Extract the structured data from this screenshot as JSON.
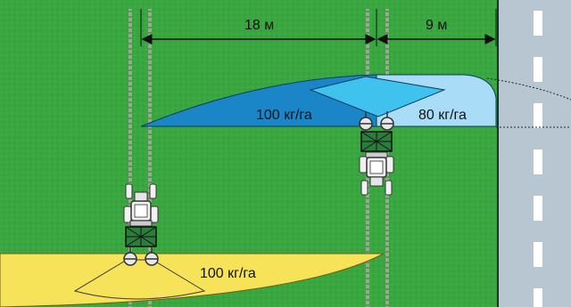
{
  "dimensions": {
    "left_width": "18 м",
    "right_width": "9 м"
  },
  "zones": {
    "blue_rate": "100 кг/га",
    "light_rate": "80 кг/га",
    "yellow_rate": "100 кг/га"
  },
  "colors": {
    "field_green": "#3aa640",
    "road_gray": "#b7c6d0",
    "spread_blue": "#1a86c8",
    "spread_light_blue": "#a9dcf7",
    "spread_yellow": "#f6e35a",
    "fan_blue": "#3fc3ee",
    "tractor_green": "#2b7d3b"
  }
}
